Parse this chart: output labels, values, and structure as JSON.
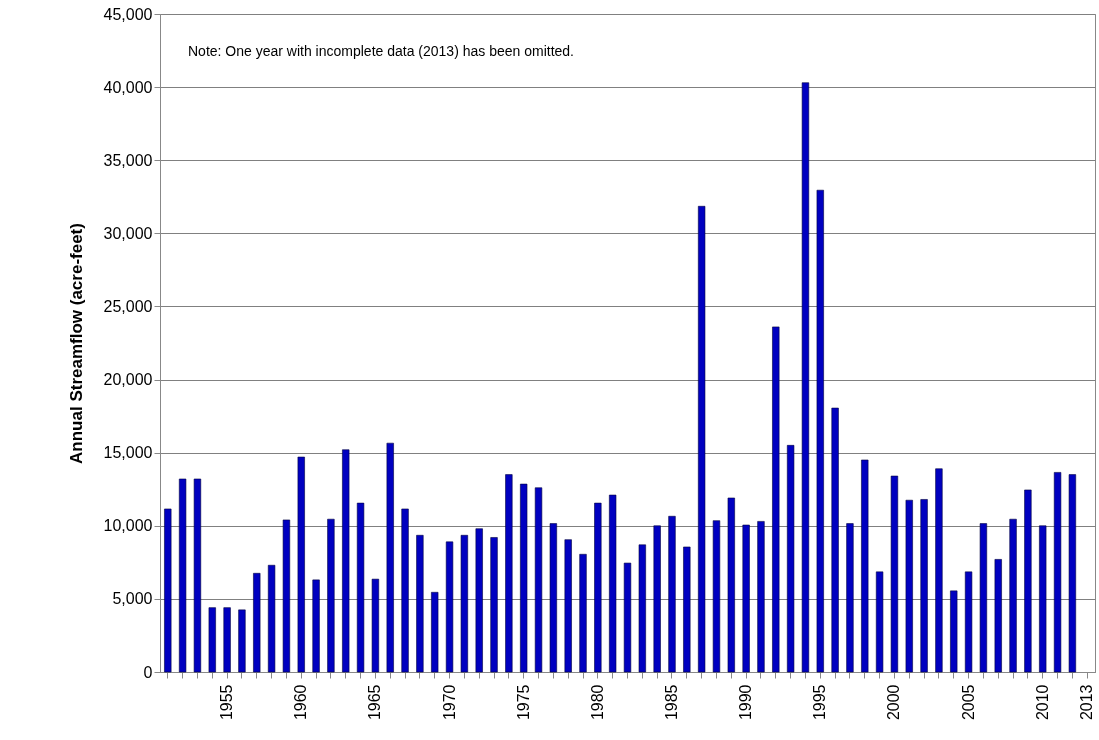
{
  "chart_data": {
    "type": "bar",
    "ylabel": "Annual Streamflow (acre-feet)",
    "annotations": [
      "Note:  One year with incomplete data (2013) has been omitted."
    ],
    "categories": [
      null,
      null,
      null,
      null,
      "1955",
      null,
      null,
      null,
      null,
      "1960",
      null,
      null,
      null,
      null,
      "1965",
      null,
      null,
      null,
      null,
      "1970",
      null,
      null,
      null,
      null,
      "1975",
      null,
      null,
      null,
      null,
      "1980",
      null,
      null,
      null,
      null,
      "1985",
      null,
      null,
      null,
      null,
      "1990",
      null,
      null,
      null,
      null,
      "1995",
      null,
      null,
      null,
      null,
      "2000",
      null,
      null,
      null,
      null,
      "2005",
      null,
      null,
      null,
      null,
      "2010",
      null,
      null,
      "2013"
    ],
    "values": [
      11150,
      13200,
      13200,
      4400,
      4400,
      4250,
      6750,
      7300,
      10400,
      14700,
      6300,
      10450,
      15200,
      11550,
      6350,
      15650,
      11150,
      9350,
      5450,
      8900,
      9350,
      9800,
      9200,
      13500,
      12850,
      12600,
      10150,
      9050,
      8050,
      11550,
      12100,
      7450,
      8700,
      10000,
      10650,
      8550,
      31850,
      10350,
      11900,
      10050,
      10300,
      23600,
      15500,
      40300,
      32950,
      18050,
      10150,
      14500,
      6850,
      13400,
      11750,
      11800,
      13900,
      5550,
      6850,
      10150,
      7700,
      10450,
      12450,
      10000,
      13650,
      13500,
      null
    ],
    "color": "#0000c0",
    "ylim": [
      0,
      45000
    ],
    "yticks": [
      0,
      {
        "value": 5000,
        "label": "5,000"
      },
      {
        "value": 10000,
        "label": "10,000"
      },
      {
        "value": 15000,
        "label": "15,000"
      },
      {
        "value": 20000,
        "label": "20,000"
      },
      {
        "value": 25000,
        "label": "25,000"
      },
      {
        "value": 30000,
        "label": "30,000"
      },
      {
        "value": 35000,
        "label": "35,000"
      },
      {
        "value": 40000,
        "label": "40,000"
      },
      {
        "value": 45000,
        "label": "45,000"
      }
    ],
    "grid": "y"
  }
}
